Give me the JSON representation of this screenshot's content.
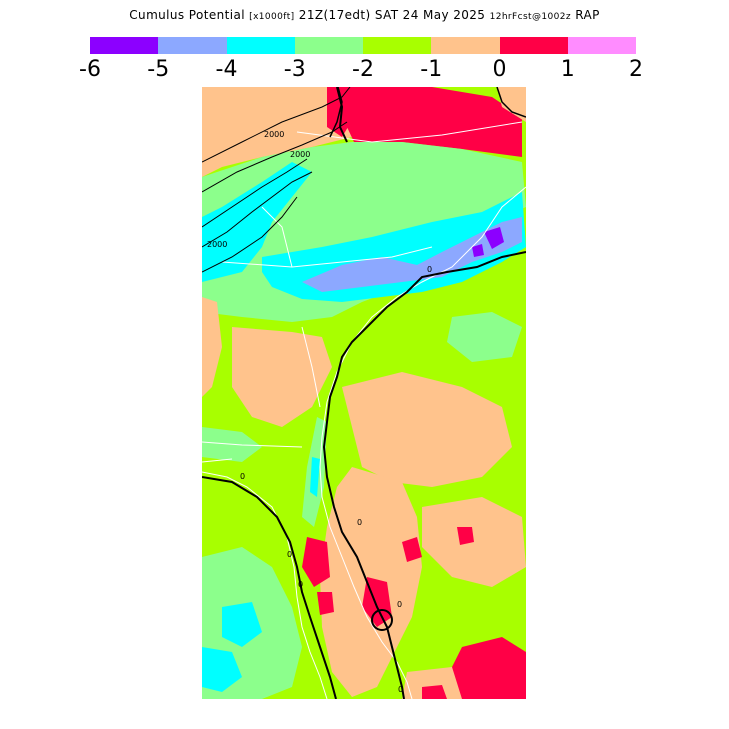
{
  "title": {
    "main": "Cumulus Potential",
    "units": "[x1000ft]",
    "valid": "21Z(17edt) SAT 24 May 2025",
    "forecast": "12hrFcst@1002z",
    "model": "RAP"
  },
  "colorbar": {
    "colors": [
      "#8c00ff",
      "#8ca8ff",
      "#00ffff",
      "#8cff8c",
      "#a8ff00",
      "#ffc38c",
      "#ff0046",
      "#ff8cff"
    ],
    "ticks": [
      "-6",
      "-5",
      "-4",
      "-3",
      "-2",
      "-1",
      "0",
      "1",
      "2"
    ]
  },
  "contour_labels": [
    "2000",
    "2000",
    "2000",
    "0",
    "0",
    "0",
    "0",
    "0",
    "0",
    "0"
  ]
}
